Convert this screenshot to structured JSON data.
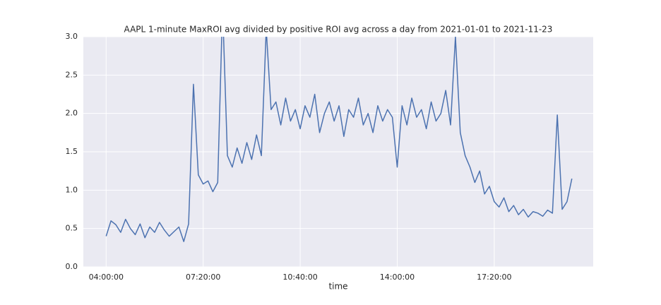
{
  "chart_data": {
    "type": "line",
    "title": "AAPL 1-minute MaxROI avg divided by positive ROI avg across a day from 2021-01-01 to 2021-11-23",
    "x_label": "time",
    "color": "#4c72b0",
    "grid": true,
    "x": [
      "04:00:00",
      "04:10:00",
      "04:20:00",
      "04:30:00",
      "04:40:00",
      "04:50:00",
      "05:00:00",
      "05:10:00",
      "05:20:00",
      "05:30:00",
      "05:40:00",
      "05:50:00",
      "06:00:00",
      "06:10:00",
      "06:20:00",
      "06:30:00",
      "06:40:00",
      "06:50:00",
      "07:00:00",
      "07:10:00",
      "07:20:00",
      "07:30:00",
      "07:40:00",
      "07:50:00",
      "08:00:00",
      "08:10:00",
      "08:20:00",
      "08:30:00",
      "08:40:00",
      "08:50:00",
      "09:00:00",
      "09:10:00",
      "09:20:00",
      "09:30:00",
      "09:40:00",
      "09:50:00",
      "10:00:00",
      "10:10:00",
      "10:20:00",
      "10:30:00",
      "10:40:00",
      "10:50:00",
      "11:00:00",
      "11:10:00",
      "11:20:00",
      "11:30:00",
      "11:40:00",
      "11:50:00",
      "12:00:00",
      "12:10:00",
      "12:20:00",
      "12:30:00",
      "12:40:00",
      "12:50:00",
      "13:00:00",
      "13:10:00",
      "13:20:00",
      "13:30:00",
      "13:40:00",
      "13:50:00",
      "14:00:00",
      "14:10:00",
      "14:20:00",
      "14:30:00",
      "14:40:00",
      "14:50:00",
      "15:00:00",
      "15:10:00",
      "15:20:00",
      "15:30:00",
      "15:40:00",
      "15:50:00",
      "16:00:00",
      "16:10:00",
      "16:20:00",
      "16:30:00",
      "16:40:00",
      "16:50:00",
      "17:00:00",
      "17:10:00",
      "17:20:00",
      "17:30:00",
      "17:40:00",
      "17:50:00",
      "18:00:00",
      "18:10:00",
      "18:20:00",
      "18:30:00",
      "18:40:00",
      "18:50:00",
      "19:00:00",
      "19:10:00",
      "19:20:00",
      "19:30:00",
      "19:40:00",
      "19:50:00",
      "20:00:00"
    ],
    "values": [
      0.4,
      0.6,
      0.55,
      0.45,
      0.62,
      0.5,
      0.42,
      0.56,
      0.38,
      0.52,
      0.45,
      0.58,
      0.48,
      0.4,
      0.46,
      0.52,
      0.33,
      0.56,
      2.38,
      1.2,
      1.08,
      1.12,
      0.98,
      1.1,
      3.4,
      1.45,
      1.3,
      1.55,
      1.35,
      1.62,
      1.4,
      1.72,
      1.45,
      3.1,
      2.05,
      2.15,
      1.85,
      2.2,
      1.9,
      2.05,
      1.8,
      2.1,
      1.95,
      2.25,
      1.75,
      2.0,
      2.15,
      1.9,
      2.1,
      1.7,
      2.05,
      1.95,
      2.2,
      1.85,
      2.0,
      1.75,
      2.1,
      1.9,
      2.05,
      1.95,
      1.3,
      2.1,
      1.85,
      2.2,
      1.95,
      2.05,
      1.8,
      2.15,
      1.9,
      2.0,
      2.3,
      1.85,
      3.0,
      1.75,
      1.45,
      1.3,
      1.1,
      1.25,
      0.95,
      1.05,
      0.85,
      0.78,
      0.9,
      0.72,
      0.8,
      0.68,
      0.75,
      0.65,
      0.72,
      0.7,
      0.66,
      0.74,
      0.7,
      1.98,
      0.75,
      0.85,
      1.15
    ],
    "xlim": [
      "03:13:00",
      "20:44:00"
    ],
    "xticks": [
      "04:00:00",
      "07:20:00",
      "10:40:00",
      "14:00:00",
      "17:20:00"
    ],
    "ylim": [
      0,
      3
    ],
    "yticks": [
      {
        "value": 0,
        "label": "0.0"
      },
      0.5,
      {
        "value": 1,
        "label": "1.0"
      },
      1.5,
      {
        "value": 2,
        "label": "2.0"
      },
      2.5,
      {
        "value": 3,
        "label": "3.0"
      }
    ]
  }
}
